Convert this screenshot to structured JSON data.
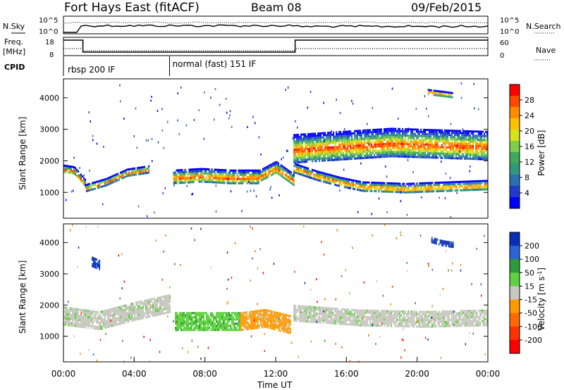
{
  "header": {
    "title": "Fort Hays East (fitACF)",
    "beam": "Beam 08",
    "date": "09/Feb/2015"
  },
  "top_panels": {
    "nsky_label": "N.Sky",
    "nsky_ticks": [
      "10^5",
      "10^0"
    ],
    "nsearch_label": "N.Search",
    "freq_label": "Freq.",
    "freq_unit": "[MHz]",
    "freq_ticks": [
      "18",
      "8"
    ],
    "nave_label": "Nave",
    "nave_ticks": [
      "60",
      "0"
    ],
    "cpid_label": "CPID",
    "cpid_segments": [
      {
        "label": "rbsp 200 IF",
        "start_hour": 0,
        "end_hour": 6
      },
      {
        "label": "normal (fast) 151 IF",
        "start_hour": 6,
        "end_hour": 24
      }
    ],
    "freq_trace": [
      {
        "start_hour": 0,
        "end_hour": 1.1,
        "level": "high"
      },
      {
        "start_hour": 1.1,
        "end_hour": 13.1,
        "level": "low"
      },
      {
        "start_hour": 13.1,
        "end_hour": 24,
        "level": "high"
      }
    ]
  },
  "chart_data": [
    {
      "type": "heatmap",
      "name": "power",
      "ylabel": "Slant Range [km]",
      "yticks": [
        1000,
        2000,
        3000,
        4000
      ],
      "ylim": [
        180,
        4600
      ],
      "xlim_hours": [
        0,
        24
      ],
      "colorbar": {
        "label": "Power [dB]",
        "ticks": [
          "28",
          "24",
          "20",
          "16",
          "12",
          "8",
          "4"
        ],
        "colors": [
          "#ff0000",
          "#ff4a00",
          "#ff8c00",
          "#ffc000",
          "#d8e21a",
          "#7ed04a",
          "#3fa85a",
          "#2f9a7a",
          "#2a6fb0",
          "#1f3cc8",
          "#0000ff"
        ]
      },
      "features": [
        {
          "start_hour": 0.0,
          "end_hour": 1.2,
          "center_km": [
            1750,
            1700,
            1300
          ],
          "width_km": 260
        },
        {
          "start_hour": 1.2,
          "end_hour": 4.8,
          "center_km": [
            1150,
            1350,
            1650,
            1750
          ],
          "width_km": 220
        },
        {
          "start_hour": 6.2,
          "end_hour": 11.0,
          "center_km": [
            1500,
            1550,
            1500,
            1500
          ],
          "width_km": 450
        },
        {
          "start_hour": 11.0,
          "end_hour": 13.0,
          "center_km": [
            1500,
            1800,
            1400
          ],
          "width_km": 400
        },
        {
          "start_hour": 13.0,
          "end_hour": 17.0,
          "center_km": [
            1800,
            1550,
            1350,
            1200
          ],
          "width_km": 280
        },
        {
          "start_hour": 17.0,
          "end_hour": 24.0,
          "center_km": [
            1200,
            1150,
            1200,
            1250
          ],
          "width_km": 300
        },
        {
          "start_hour": 20.6,
          "end_hour": 22.0,
          "center_km": [
            4200,
            4150,
            4100
          ],
          "width_km": 160
        },
        {
          "start_hour": 13.0,
          "end_hour": 24.0,
          "center_km": [
            2400,
            2600,
            2500
          ],
          "width_km": 900
        }
      ]
    },
    {
      "type": "heatmap",
      "name": "velocity",
      "ylabel": "Slant Range [km]",
      "yticks": [
        1000,
        2000,
        3000,
        4000
      ],
      "ylim": [
        180,
        4600
      ],
      "xlim_hours": [
        0,
        24
      ],
      "xlabel": "Time UT",
      "xticks": [
        "00:00",
        "04:00",
        "08:00",
        "12:00",
        "16:00",
        "20:00",
        "00:00"
      ],
      "colorbar": {
        "label": "Velocity [m s^-1]",
        "ticks": [
          "200",
          "100",
          "50",
          "15",
          "-15",
          "-50",
          "-100",
          "-200"
        ],
        "colors": [
          "#0a2eb8",
          "#2c64d8",
          "#2e9a3a",
          "#5fd23f",
          "#c8c8c0",
          "#ff9900",
          "#ff6a00",
          "#ff3300",
          "#ff0000"
        ]
      },
      "features": [
        {
          "start_hour": 0.0,
          "end_hour": 6.0,
          "center_km": [
            1650,
            1500,
            1800,
            2050
          ],
          "width_km": 600,
          "velocity": 0
        },
        {
          "start_hour": 6.3,
          "end_hour": 10.0,
          "center_km": [
            1500,
            1500,
            1500
          ],
          "width_km": 550,
          "velocity": 40
        },
        {
          "start_hour": 10.0,
          "end_hour": 12.8,
          "center_km": [
            1500,
            1600,
            1400
          ],
          "width_km": 550,
          "velocity": -40
        },
        {
          "start_hour": 13.0,
          "end_hour": 24.0,
          "center_km": [
            1750,
            1600,
            1550,
            1600
          ],
          "width_km": 520,
          "velocity": 0
        },
        {
          "start_hour": 20.8,
          "end_hour": 22.0,
          "center_km": [
            4100,
            4000,
            3950
          ],
          "width_km": 160,
          "velocity": 200
        },
        {
          "start_hour": 1.6,
          "end_hour": 2.0,
          "center_km": [
            3400,
            3300
          ],
          "width_km": 300,
          "velocity": 200
        }
      ]
    }
  ]
}
